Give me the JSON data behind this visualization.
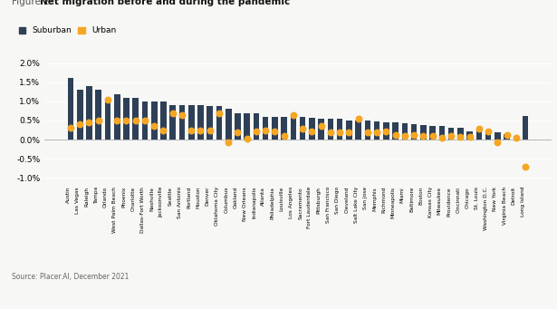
{
  "title_prefix": "Figure 2: ",
  "title_bold": "Net migration before and during the pandemic",
  "source": "Source: Placer.AI, December 2021",
  "legend": [
    "Suburban",
    "Urban"
  ],
  "bar_color": "#2e4057",
  "dot_color": "#f5a623",
  "background_color": "#f7f7f5",
  "categories": [
    "Austin",
    "Las Vegas",
    "Raleigh",
    "Tampa",
    "Orlando",
    "West Palm Beach",
    "Phoenix",
    "Charlotte",
    "Dallas-Fort Worth",
    "Nashville",
    "Jacksonville",
    "Seattle",
    "San Antonio",
    "Portland",
    "Houston",
    "Denver",
    "Oklahoma City",
    "Columbus",
    "Oakland",
    "New Orleans",
    "Indianapolis",
    "Atlanta",
    "Philadelphia",
    "Louisville",
    "Los Angeles",
    "Sacramento",
    "Fort Lauderdale",
    "Pittsburgh",
    "San Francisco",
    "San Diego",
    "Cleveland",
    "Salt Lake City",
    "San Jose",
    "Memphis",
    "Richmond",
    "Minneapolis",
    "Miami",
    "Baltimore",
    "Boston",
    "Kansas City",
    "Milwaukee",
    "Providence",
    "Cincinnati",
    "Chicago",
    "St. Louis",
    "Washington D.C.",
    "New York",
    "Virginia Beach",
    "Detroit",
    "Long Island"
  ],
  "suburban_values": [
    0.0162,
    0.013,
    0.014,
    0.013,
    0.0105,
    0.012,
    0.011,
    0.011,
    0.01,
    0.01,
    0.01,
    0.009,
    0.009,
    0.009,
    0.009,
    0.0088,
    0.0088,
    0.008,
    0.007,
    0.007,
    0.007,
    0.006,
    0.006,
    0.006,
    0.006,
    0.006,
    0.0058,
    0.0055,
    0.0055,
    0.0055,
    0.005,
    0.005,
    0.005,
    0.0048,
    0.0045,
    0.0045,
    0.0042,
    0.004,
    0.0038,
    0.0035,
    0.0035,
    0.0032,
    0.003,
    0.0022,
    0.0028,
    0.002,
    0.0018,
    0.0015,
    0.001,
    0.0062
  ],
  "urban_values": [
    0.003,
    0.004,
    0.0045,
    0.005,
    0.0105,
    0.005,
    0.005,
    0.005,
    0.005,
    0.0035,
    0.0025,
    0.007,
    0.0065,
    0.0025,
    0.0025,
    0.0025,
    0.0068,
    -0.0008,
    0.002,
    0.0002,
    0.0022,
    0.0025,
    0.0022,
    0.001,
    0.0065,
    0.0028,
    0.0022,
    0.0035,
    0.0018,
    0.0018,
    0.002,
    0.0055,
    0.002,
    0.002,
    0.0022,
    0.0012,
    0.001,
    0.0012,
    0.001,
    0.001,
    0.0005,
    0.001,
    0.0008,
    0.0008,
    0.0028,
    0.0022,
    -0.0008,
    0.0012,
    0.0005,
    -0.0072
  ],
  "ylim": [
    -0.012,
    0.022
  ],
  "yticks": [
    -0.01,
    -0.005,
    0.0,
    0.005,
    0.01,
    0.015,
    0.02
  ],
  "ytick_labels": [
    "-1.0%",
    "-0.5%",
    "0.0%",
    "0.5%",
    "1.0%",
    "1.5%",
    "2.0%"
  ]
}
